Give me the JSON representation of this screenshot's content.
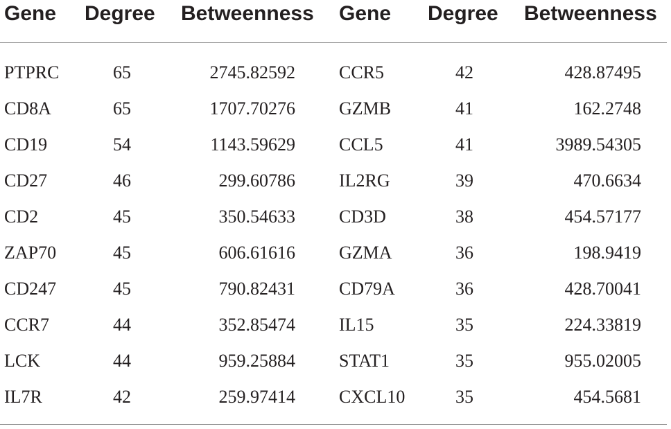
{
  "headers": [
    "Gene",
    "Degree",
    "Betweenness",
    "Gene",
    "Degree",
    "Betweenness"
  ],
  "rows": [
    [
      "PTPRC",
      "65",
      "2745.82592",
      "CCR5",
      "42",
      "428.87495"
    ],
    [
      "CD8A",
      "65",
      "1707.70276",
      "GZMB",
      "41",
      "162.2748"
    ],
    [
      "CD19",
      "54",
      "1143.59629",
      "CCL5",
      "41",
      "3989.54305"
    ],
    [
      "CD27",
      "46",
      "299.60786",
      "IL2RG",
      "39",
      "470.6634"
    ],
    [
      "CD2",
      "45",
      "350.54633",
      "CD3D",
      "38",
      "454.57177"
    ],
    [
      "ZAP70",
      "45",
      "606.61616",
      "GZMA",
      "36",
      "198.9419"
    ],
    [
      "CD247",
      "45",
      "790.82431",
      "CD79A",
      "36",
      "428.70041"
    ],
    [
      "CCR7",
      "44",
      "352.85474",
      "IL15",
      "35",
      "224.33819"
    ],
    [
      "LCK",
      "44",
      "959.25884",
      "STAT1",
      "35",
      "955.02005"
    ],
    [
      "IL7R",
      "42",
      "259.97414",
      "CXCL10",
      "35",
      "454.5681"
    ]
  ]
}
